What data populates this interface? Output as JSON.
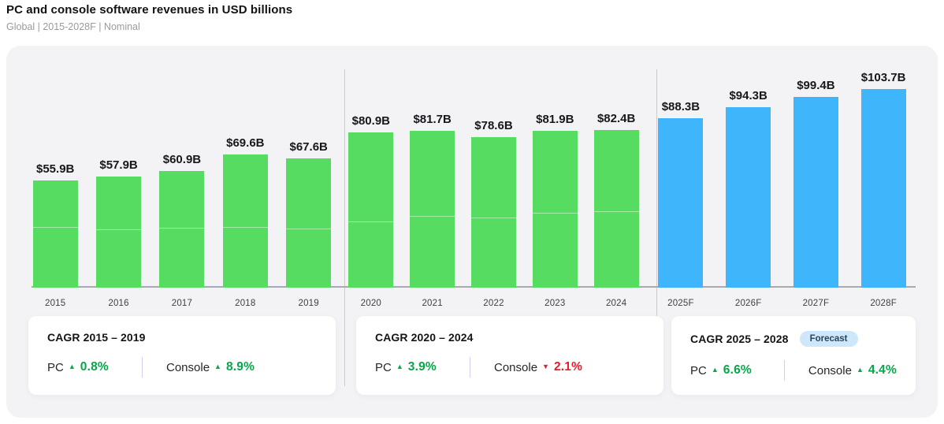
{
  "header": {
    "title": "PC and console software revenues in USD billions",
    "subtitle": "Global | 2015-2028F | Nominal"
  },
  "chart_data": {
    "type": "bar",
    "title": "PC and console software revenues in USD billions",
    "subtitle": "Global | 2015-2028F | Nominal",
    "unit": "USD billions",
    "categories": [
      "2015",
      "2016",
      "2017",
      "2018",
      "2019",
      "2020",
      "2021",
      "2022",
      "2023",
      "2024",
      "2025F",
      "2026F",
      "2027F",
      "2028F"
    ],
    "values": [
      55.9,
      57.9,
      60.9,
      69.6,
      67.6,
      80.9,
      81.7,
      78.6,
      81.9,
      82.4,
      88.3,
      94.3,
      99.4,
      103.7
    ],
    "value_labels": [
      "$55.9B",
      "$57.9B",
      "$60.9B",
      "$69.6B",
      "$67.6B",
      "$80.9B",
      "$81.7B",
      "$78.6B",
      "$81.9B",
      "$82.4B",
      "$88.3B",
      "$94.3B",
      "$99.4B",
      "$103.7B"
    ],
    "forecast_start_index": 10,
    "group_breaks_after_index": [
      4,
      9
    ],
    "split_fractions": [
      0.56,
      0.52,
      0.51,
      0.45,
      0.45,
      0.42,
      0.45,
      0.46,
      0.47,
      0.48,
      null,
      null,
      null,
      null
    ],
    "ylim": [
      0,
      110
    ],
    "grid": false,
    "legend": false
  },
  "cards": [
    {
      "title": "CAGR 2015 – 2019",
      "pc": {
        "label": "PC",
        "arrow": "▲",
        "direction": "up",
        "value": "0.8%"
      },
      "console": {
        "label": "Console",
        "arrow": "▲",
        "direction": "up",
        "value": "8.9%"
      }
    },
    {
      "title": "CAGR 2020 – 2024",
      "pc": {
        "label": "PC",
        "arrow": "▲",
        "direction": "up",
        "value": "3.9%"
      },
      "console": {
        "label": "Console",
        "arrow": "▼",
        "direction": "down",
        "value": "2.1%"
      }
    },
    {
      "title": "CAGR 2025 – 2028",
      "badge": "Forecast",
      "pc": {
        "label": "PC",
        "arrow": "▲",
        "direction": "up",
        "value": "6.6%"
      },
      "console": {
        "label": "Console",
        "arrow": "▲",
        "direction": "up",
        "value": "4.4%"
      }
    }
  ],
  "colors": {
    "bar_actual": "#56DC61",
    "bar_forecast": "#3FB5FC",
    "positive": "#07A64A",
    "negative": "#EE1B2D",
    "panel_bg": "#F3F3F6",
    "divider": "#C5C9EC",
    "axis": "#A9A9B0",
    "badge_bg": "#CEE7FA",
    "badge_text": "#28455E"
  }
}
